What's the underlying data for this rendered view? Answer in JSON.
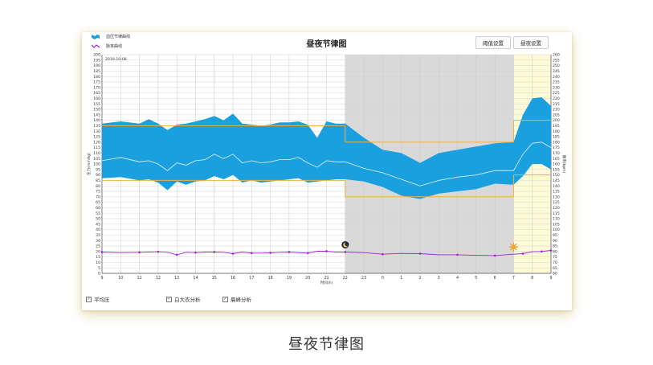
{
  "chart_data": {
    "type": "area",
    "title": "昼夜节律图",
    "date": "2019-10-08",
    "xlabel": "时间(h)",
    "ylabel_left": "压力(mmHg)",
    "ylabel_right": "脉率(bpm)",
    "ylim_left": [
      0,
      200
    ],
    "ylim_right": [
      60,
      260
    ],
    "y_left_ticks": [
      0,
      5,
      10,
      15,
      20,
      25,
      30,
      35,
      40,
      45,
      50,
      55,
      60,
      65,
      70,
      75,
      80,
      85,
      90,
      95,
      100,
      105,
      110,
      115,
      120,
      125,
      130,
      135,
      140,
      145,
      150,
      155,
      160,
      165,
      170,
      175,
      180,
      185,
      190,
      195,
      200
    ],
    "y_right_ticks": [
      60,
      65,
      70,
      75,
      80,
      85,
      90,
      95,
      100,
      105,
      110,
      115,
      120,
      125,
      130,
      135,
      140,
      145,
      150,
      155,
      160,
      165,
      170,
      175,
      180,
      185,
      190,
      195,
      200,
      205,
      210,
      215,
      220,
      225,
      230,
      235,
      240,
      245,
      250,
      255,
      260
    ],
    "x_ticks": [
      "9",
      "10",
      "11",
      "12",
      "13",
      "14",
      "15",
      "16",
      "17",
      "18",
      "19",
      "20",
      "21",
      "22",
      "23",
      "0",
      "1",
      "2",
      "3",
      "4",
      "5",
      "6",
      "7",
      "8",
      "9"
    ],
    "grid": true,
    "legend": [
      {
        "name": "血压节律曲线",
        "color": "#1a9fdf"
      },
      {
        "name": "脉率曲线",
        "color": "#a21fd6"
      }
    ],
    "night_band": {
      "start": "22",
      "end": "7",
      "color": "#d9d9d9"
    },
    "morning_band": {
      "start": "7",
      "end": "9",
      "color": "#fdfad6"
    },
    "night_icon": "moon-icon",
    "morning_icon": "sun-icon",
    "threshold_color": "#f0b040",
    "thresholds": {
      "day": {
        "systolic": 135,
        "diastolic": 85
      },
      "night": {
        "systolic": 120,
        "diastolic": 70
      },
      "morning": {
        "systolic": 140,
        "diastolic": 90
      }
    },
    "series": {
      "x": [
        9,
        10,
        11,
        11.5,
        12,
        12.5,
        13,
        13.5,
        14,
        14.5,
        15,
        15.5,
        16,
        16.5,
        17,
        17.5,
        18,
        18.5,
        19,
        19.5,
        20,
        20.5,
        21,
        21.5,
        22,
        23,
        24,
        25,
        26,
        27,
        28,
        29,
        30,
        31,
        31.5,
        32,
        32.5,
        33
      ],
      "systolic": [
        137,
        139,
        137,
        141,
        137,
        131,
        136,
        137,
        139,
        141,
        144,
        140,
        146,
        137,
        136,
        135,
        136,
        138,
        138,
        139,
        136,
        124,
        139,
        137,
        137,
        124,
        113,
        110,
        101,
        110,
        113,
        116,
        119,
        120,
        145,
        160,
        161,
        153
      ],
      "mean": [
        103,
        106,
        102,
        103,
        100,
        94,
        101,
        99,
        103,
        104,
        109,
        105,
        109,
        101,
        103,
        101,
        102,
        104,
        104,
        106,
        101,
        97,
        103,
        102,
        102,
        96,
        92,
        86,
        80,
        85,
        88,
        90,
        94,
        94,
        109,
        119,
        120,
        115
      ],
      "diastolic": [
        87,
        88,
        85,
        86,
        83,
        76,
        84,
        81,
        84,
        85,
        89,
        86,
        90,
        83,
        85,
        83,
        84,
        85,
        86,
        87,
        83,
        84,
        85,
        86,
        86,
        84,
        79,
        71,
        68,
        73,
        75,
        77,
        82,
        81,
        89,
        100,
        100,
        95
      ],
      "pulse": [
        78,
        76,
        77,
        78,
        79,
        77,
        68,
        77,
        76,
        78,
        78,
        77,
        72,
        78,
        74,
        74,
        75,
        77,
        78,
        76,
        74,
        81,
        81,
        78,
        78,
        76,
        70,
        73,
        72,
        68,
        68,
        66,
        65,
        70,
        72,
        79,
        80,
        84
      ]
    }
  },
  "options": [
    {
      "label": "平均压",
      "checked": true
    },
    {
      "label": "白大衣分析",
      "checked": true
    },
    {
      "label": "晨峰分析",
      "checked": true
    }
  ],
  "buttons": {
    "threshold": "阈值设置",
    "day_night": "昼夜设置"
  },
  "caption": "昼夜节律图"
}
